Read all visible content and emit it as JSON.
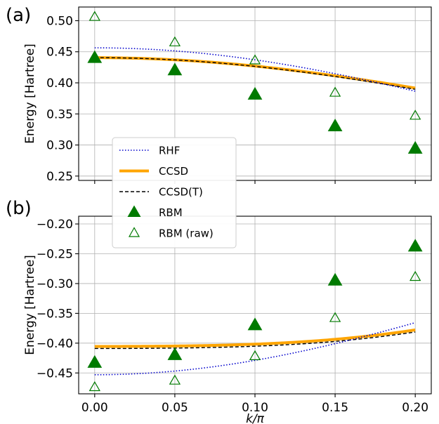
{
  "colors": {
    "rhf": "#0000cc",
    "ccsd": "#ffa500",
    "ccsdt": "#000000",
    "rbm": "#007a00",
    "grid": "#b0b0b0",
    "legend_border": "#cccccc"
  },
  "legend": {
    "placement": "overlapping both panels, left-center",
    "entries": [
      {
        "key": "rhf",
        "label": "RHF",
        "style": "dotted line"
      },
      {
        "key": "ccsd",
        "label": "CCSD",
        "style": "thick solid line"
      },
      {
        "key": "ccsdt",
        "label": "CCSD(T)",
        "style": "dashed line"
      },
      {
        "key": "rbm",
        "label": "RBM",
        "style": "filled triangle"
      },
      {
        "key": "rbm_raw",
        "label": "RBM (raw)",
        "style": "open triangle"
      }
    ]
  },
  "chart_data": [
    {
      "type": "line",
      "panel_label": "(a)",
      "xlabel": "",
      "ylabel": "Energy [Hartree]",
      "xlim": [
        -0.01,
        0.21
      ],
      "ylim": [
        0.243,
        0.522
      ],
      "xticks": [
        0.0,
        0.05,
        0.1,
        0.15,
        0.2
      ],
      "xtick_labels_shown": false,
      "yticks": [
        0.25,
        0.3,
        0.35,
        0.4,
        0.45,
        0.5
      ],
      "ytick_labels": [
        "0.25",
        "0.30",
        "0.35",
        "0.40",
        "0.45",
        "0.50"
      ],
      "grid": true,
      "curves": {
        "rhf": {
          "a": 0.35535,
          "b": 0.101
        },
        "ccsd": {
          "a": 0.36975,
          "b": 0.07075
        },
        "ccsdt": {
          "a": 0.3668,
          "b": 0.0737
        }
      },
      "series": [
        {
          "key": "rbm",
          "x": [
            0.0,
            0.05,
            0.1,
            0.15,
            0.2
          ],
          "y": [
            0.44,
            0.42,
            0.381,
            0.33,
            0.294
          ]
        },
        {
          "key": "rbm_raw",
          "x": [
            0.0,
            0.05,
            0.1,
            0.15,
            0.2
          ],
          "y": [
            0.506,
            0.465,
            0.436,
            0.384,
            0.347
          ]
        }
      ]
    },
    {
      "type": "line",
      "panel_label": "(b)",
      "xlabel": "k/π",
      "ylabel": "Energy [Hartree]",
      "xlim": [
        -0.01,
        0.21
      ],
      "ylim": [
        -0.485,
        -0.187
      ],
      "xticks": [
        0.0,
        0.05,
        0.1,
        0.15,
        0.2
      ],
      "xtick_labels": [
        "0.00",
        "0.05",
        "0.10",
        "0.15",
        "0.20"
      ],
      "yticks": [
        -0.45,
        -0.4,
        -0.35,
        -0.3,
        -0.25,
        -0.2
      ],
      "ytick_labels": [
        "−0.45",
        "−0.40",
        "−0.35",
        "−0.30",
        "−0.25",
        "−0.20"
      ],
      "grid": true,
      "curves": {
        "rhf": {
          "a": -0.3265,
          "b": -0.1265
        },
        "ccsd": {
          "a": -0.333,
          "b": -0.0925,
          "c": 0.02
        },
        "ccsdt": {
          "a": -0.3365,
          "b": -0.0925,
          "c": 0.02
        }
      },
      "series": [
        {
          "key": "rbm",
          "x": [
            0.0,
            0.05,
            0.1,
            0.15,
            0.2
          ],
          "y": [
            -0.433,
            -0.42,
            -0.37,
            -0.295,
            -0.238
          ]
        },
        {
          "key": "rbm_raw",
          "x": [
            0.0,
            0.05,
            0.1,
            0.15,
            0.2
          ],
          "y": [
            -0.474,
            -0.463,
            -0.422,
            -0.358,
            -0.289
          ]
        }
      ]
    }
  ]
}
